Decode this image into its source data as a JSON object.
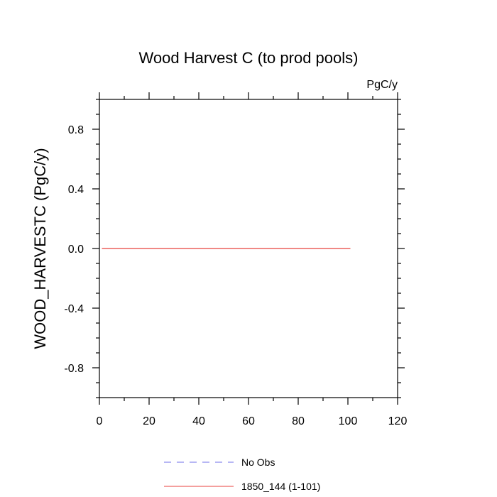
{
  "chart_data": {
    "type": "line",
    "title": "Wood Harvest C (to prod pools)",
    "units_label": "PgC/y",
    "xlabel": "",
    "ylabel": "WOOD_HARVESTC  (PgC/y)",
    "xlim": [
      0,
      120
    ],
    "ylim": [
      -1,
      1
    ],
    "x_ticks": [
      0,
      20,
      40,
      60,
      80,
      100,
      120
    ],
    "x_tick_labels": [
      "0",
      "20",
      "40",
      "60",
      "80",
      "100",
      "120"
    ],
    "y_ticks": [
      0.8,
      0.4,
      0.0,
      -0.4,
      -0.8
    ],
    "y_tick_labels": [
      "0.8",
      "0.4",
      "0.0",
      "-0.4",
      "-0.8"
    ],
    "grid": false,
    "legend_position": "bottom",
    "series": [
      {
        "name": "1850_144 (1-101)",
        "color": "#e8403c",
        "style": "solid",
        "x": [
          1,
          101
        ],
        "y": [
          0.0,
          0.0
        ]
      }
    ],
    "legend": [
      {
        "label": "No Obs",
        "color": "#6f6fe8",
        "style": "dashed"
      },
      {
        "label": "1850_144 (1-101)",
        "color": "#e8403c",
        "style": "solid"
      }
    ]
  }
}
